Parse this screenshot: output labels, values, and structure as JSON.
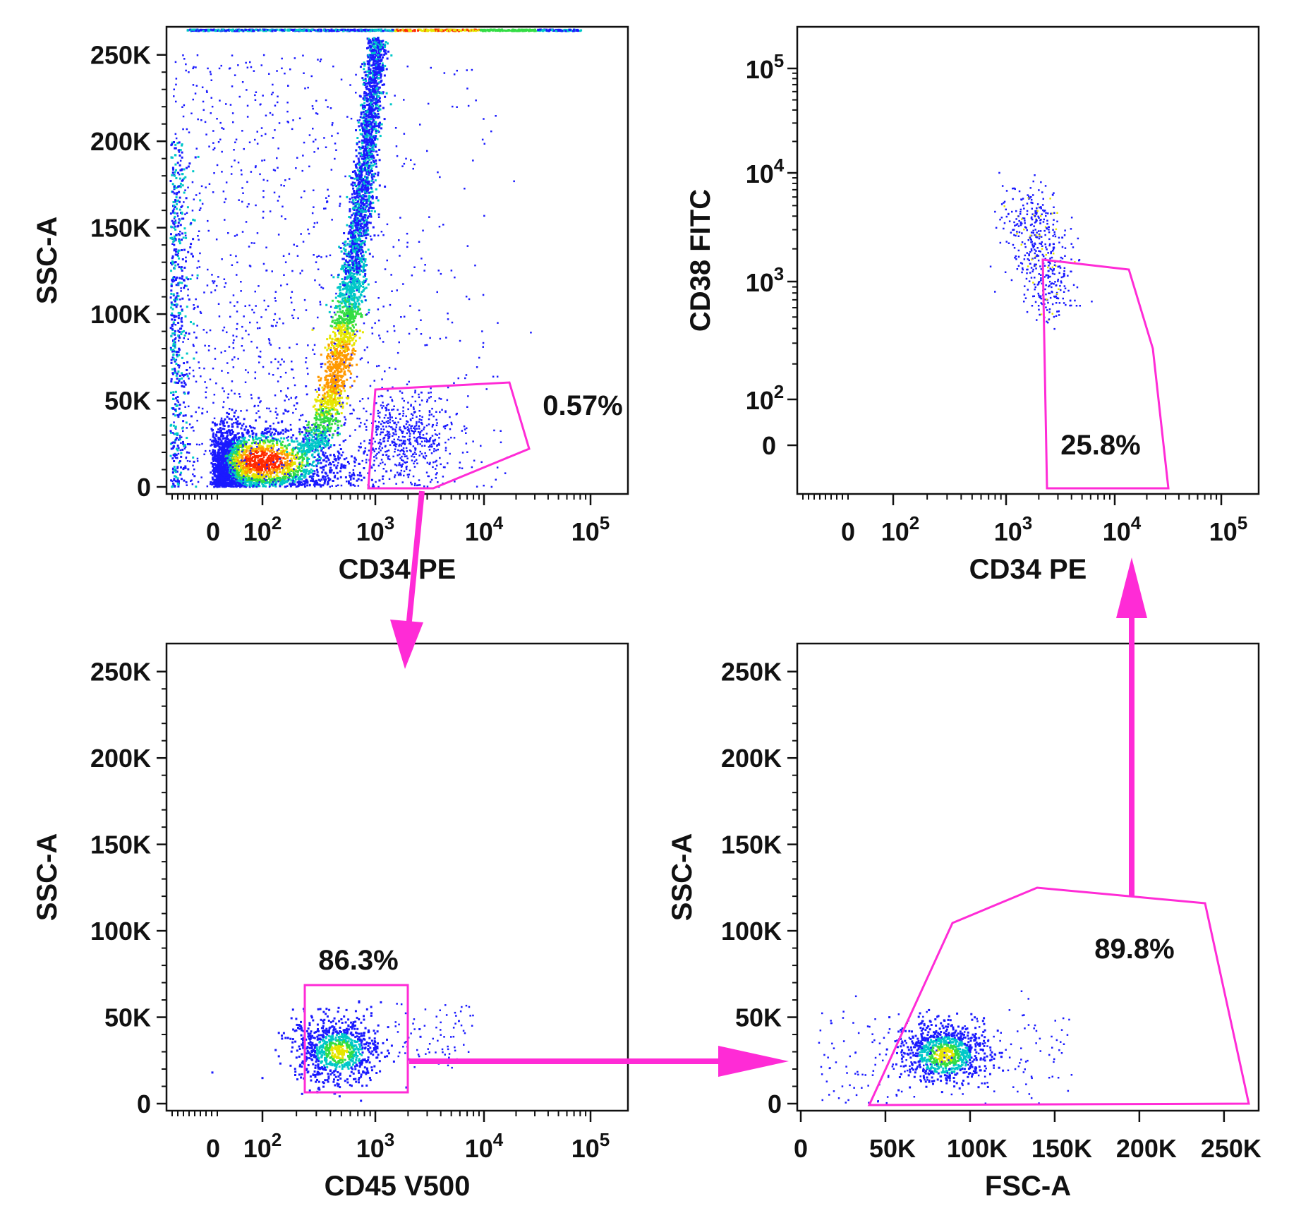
{
  "chart_data": [
    {
      "type": "scatter",
      "subtype": "flow-cytometry-density-dot-plot",
      "xlabel": "CD34 PE",
      "ylabel": "SSC-A",
      "x_scale": "biexponential",
      "x_ticks": [
        "0",
        "10^2",
        "10^3",
        "10^4",
        "10^5"
      ],
      "y_scale": "linear",
      "y_ticks": [
        "0",
        "50K",
        "100K",
        "150K",
        "200K",
        "250K"
      ],
      "ylim": [
        0,
        262144
      ],
      "gate": {
        "label": "0.57%",
        "value_percent": 0.57,
        "x_range": [
          1000,
          25000
        ],
        "y_range": [
          4000,
          62000
        ]
      },
      "population": "dense diagonal stream from low CD34 / low SSC rising to saturation at 10^3 CD34, with rare CD34+ events near 10^3-10^4"
    },
    {
      "type": "scatter",
      "subtype": "flow-cytometry-density-dot-plot",
      "xlabel": "CD45 V500",
      "ylabel": "SSC-A",
      "x_scale": "biexponential",
      "x_ticks": [
        "0",
        "10^2",
        "10^3",
        "10^4",
        "10^5"
      ],
      "y_scale": "linear",
      "y_ticks": [
        "0",
        "50K",
        "100K",
        "150K",
        "200K",
        "250K"
      ],
      "ylim": [
        0,
        262144
      ],
      "gate": {
        "label": "86.3%",
        "value_percent": 86.3,
        "x_range": [
          250,
          2000
        ],
        "y_range": [
          10000,
          72000
        ]
      },
      "population": "CD45 dim, low SSC events centered near CD45 ~500, SSC ~30K"
    },
    {
      "type": "scatter",
      "subtype": "flow-cytometry-density-dot-plot",
      "xlabel": "FSC-A",
      "ylabel": "SSC-A",
      "x_scale": "linear",
      "x_ticks": [
        "0",
        "50K",
        "100K",
        "150K",
        "200K",
        "250K"
      ],
      "xlim": [
        0,
        262144
      ],
      "y_scale": "linear",
      "y_ticks": [
        "0",
        "50K",
        "100K",
        "150K",
        "200K",
        "250K"
      ],
      "ylim": [
        0,
        262144
      ],
      "gate": {
        "label": "89.8%",
        "value_percent": 89.8
      },
      "population": "lymphocyte-like cluster centered at FSC ~85K, SSC ~30K"
    },
    {
      "type": "scatter",
      "subtype": "flow-cytometry-density-dot-plot",
      "xlabel": "CD34 PE",
      "ylabel": "CD38 FITC",
      "x_scale": "biexponential",
      "x_ticks": [
        "0",
        "10^2",
        "10^3",
        "10^4",
        "10^5"
      ],
      "y_scale": "biexponential",
      "y_ticks": [
        "0",
        "10^2",
        "10^3",
        "10^4",
        "10^5"
      ],
      "gate": {
        "label": "25.8%",
        "value_percent": 25.8,
        "description": "CD34+ CD38- region"
      },
      "population": "CD34+ events spread from CD38 ~10^4 down to ~10^3"
    }
  ],
  "gating_flow": [
    "CD34 PE vs SSC-A",
    "CD45 V500 vs SSC-A",
    "FSC-A vs SSC-A",
    "CD34 PE vs CD38 FITC"
  ],
  "colors": {
    "gate": "#ff2bd6",
    "dots_low": "#1a1aff",
    "dots_mid": "#00c8c8",
    "dots_high": "#ff2a00"
  }
}
